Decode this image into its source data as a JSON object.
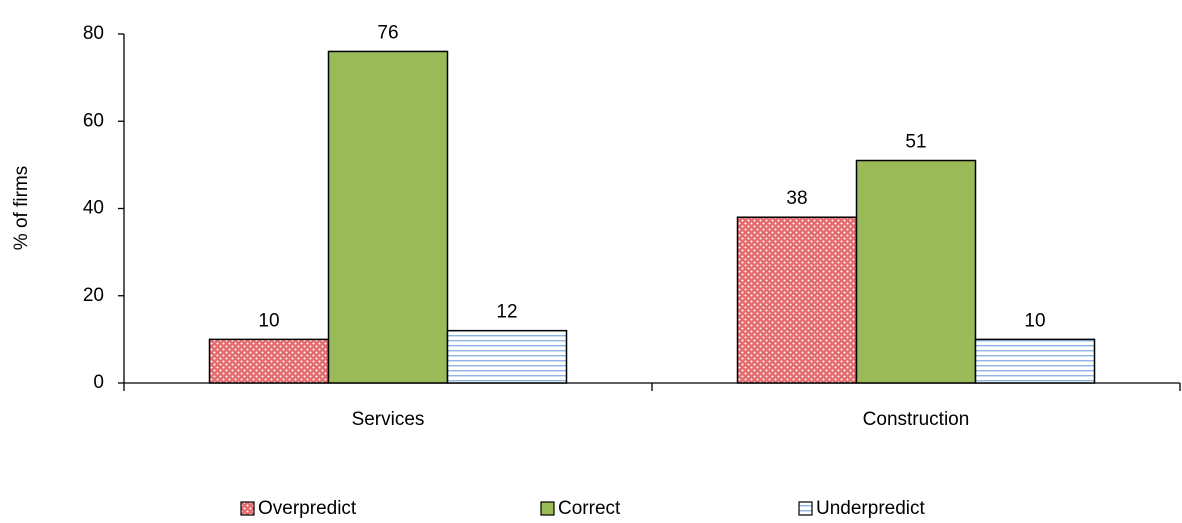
{
  "chart_data": {
    "type": "bar",
    "y_label": "% of firms",
    "categories": [
      "Services",
      "Construction"
    ],
    "series": [
      {
        "name": "Overpredict",
        "color": "#e46c6e",
        "pattern": "dots",
        "values": [
          10,
          38
        ]
      },
      {
        "name": "Correct",
        "color": "#9bbb59",
        "pattern": "solid",
        "values": [
          76,
          51
        ]
      },
      {
        "name": "Underpredict",
        "color": "#8eb4e3",
        "pattern": "lines",
        "values": [
          12,
          10
        ]
      }
    ],
    "ylim": [
      0,
      80
    ],
    "yticks": [
      0,
      20,
      40,
      60,
      80
    ],
    "grid": false,
    "legend": "bottom"
  }
}
